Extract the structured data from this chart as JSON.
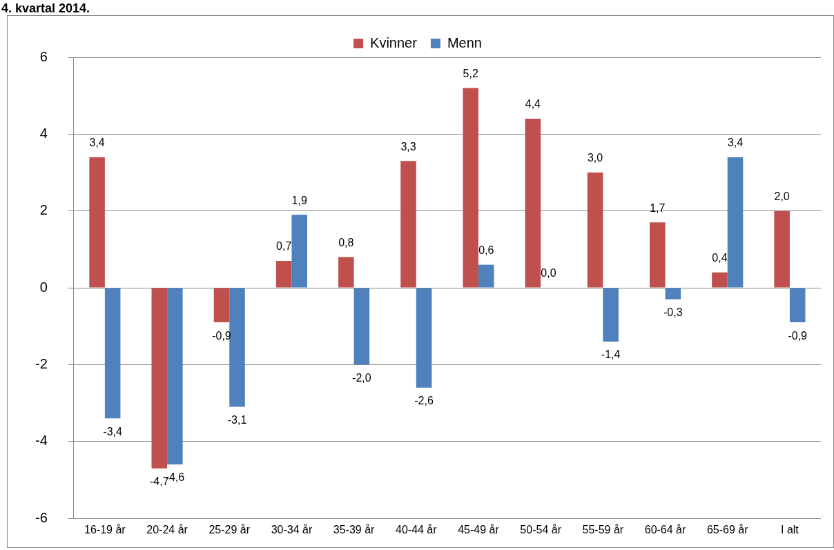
{
  "chart_data": {
    "type": "bar",
    "title": "4. kvartal 2014.",
    "categories": [
      "16-19 år",
      "20-24 år",
      "25-29 år",
      "30-34 år",
      "35-39 år",
      "40-44 år",
      "45-49 år",
      "50-54 år",
      "55-59 år",
      "60-64 år",
      "65-69 år",
      "I alt"
    ],
    "series": [
      {
        "name": "Kvinner",
        "color": "#c0504d",
        "values": [
          3.4,
          -4.7,
          -0.9,
          0.7,
          0.8,
          3.3,
          5.2,
          4.4,
          3.0,
          1.7,
          0.4,
          2.0
        ],
        "value_labels": [
          "3,4",
          "-4,7",
          "-0,9",
          "0,7",
          "0,8",
          "3,3",
          "5,2",
          "4,4",
          "3,0",
          "1,7",
          "0,4",
          "2,0"
        ]
      },
      {
        "name": "Menn",
        "color": "#4f81bd",
        "values": [
          -3.4,
          -4.6,
          -3.1,
          1.9,
          -2.0,
          -2.6,
          0.6,
          0.0,
          -1.4,
          -0.3,
          3.4,
          -0.9
        ],
        "value_labels": [
          "-3,4",
          "-4,6",
          "-3,1",
          "1,9",
          "-2,0",
          "-2,6",
          "0,6",
          "0,0",
          "-1,4",
          "-0,3",
          "3,4",
          "-0,9"
        ]
      }
    ],
    "ylim": [
      -6,
      6
    ],
    "yticks": [
      -6,
      -4,
      -2,
      0,
      2,
      4,
      6
    ],
    "grid": "y",
    "legend": "top"
  }
}
